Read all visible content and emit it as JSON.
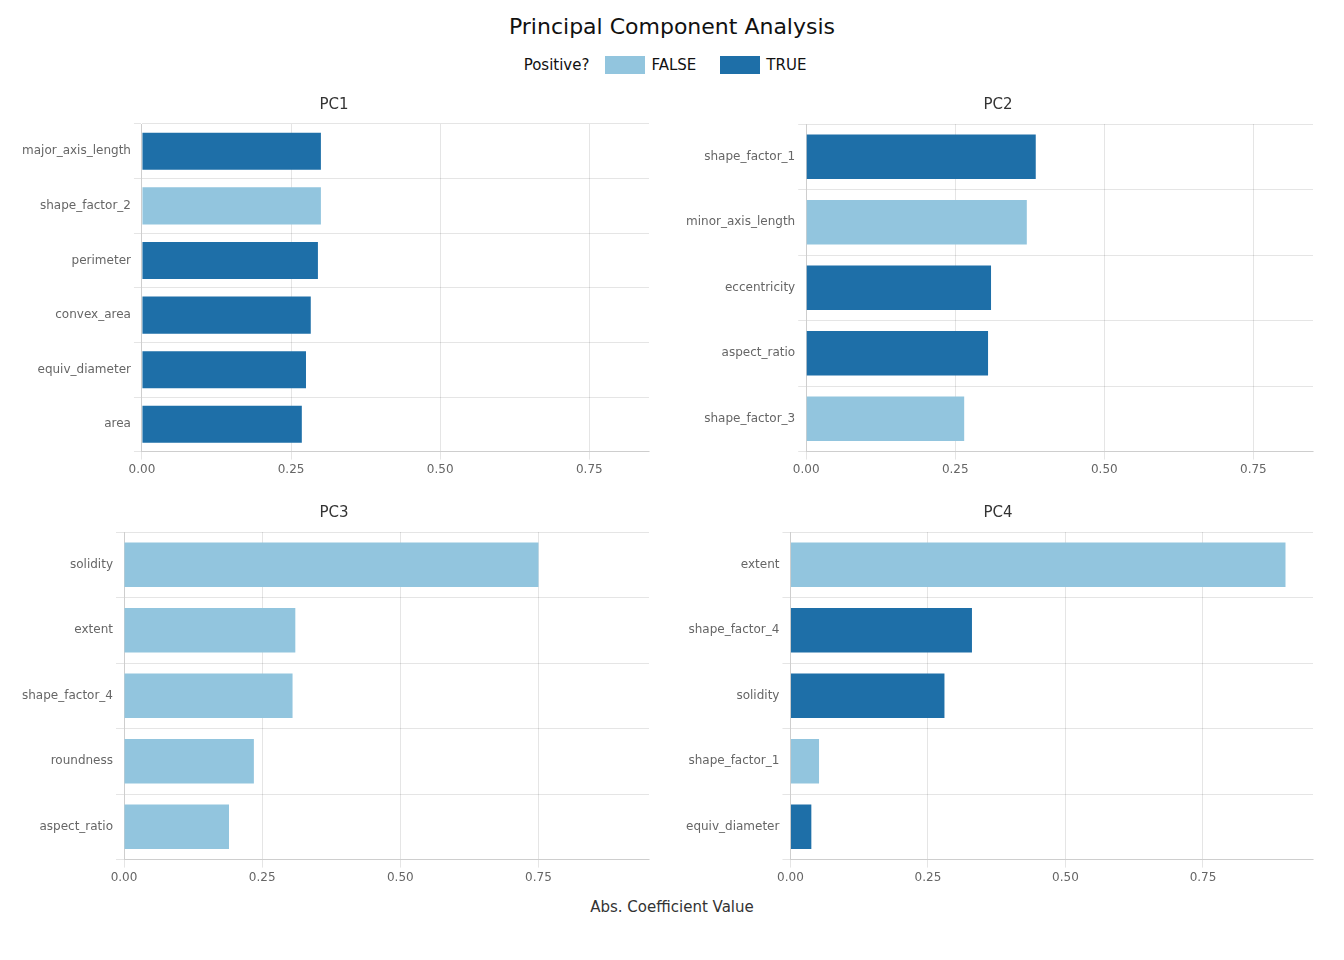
{
  "title": "Principal Component Analysis",
  "xlabel": "Abs. Coefficient Value",
  "legend_title": "Positive?",
  "chart_data": [
    {
      "type": "bar",
      "orientation": "horizontal",
      "stacked": true,
      "grid": true,
      "title": "PC1",
      "categories": [
        "major_axis_length",
        "shape_factor_2",
        "perimeter",
        "convex_area",
        "equiv_diameter",
        "area"
      ],
      "series": [
        {
          "name": "FALSE",
          "color": "#92C5DE",
          "values": [
            null,
            0.3,
            null,
            null,
            null,
            null
          ]
        },
        {
          "name": "TRUE",
          "color": "#1E6FA8",
          "values": [
            0.3,
            null,
            0.295,
            0.283,
            0.275,
            0.268
          ]
        }
      ],
      "xlim": [
        0,
        0.85
      ],
      "xticks": [
        {
          "value": 0,
          "label": "0.00"
        },
        0.25,
        {
          "value": 0.5,
          "label": "0.50"
        },
        0.75
      ]
    },
    {
      "type": "bar",
      "orientation": "horizontal",
      "stacked": true,
      "grid": true,
      "title": "PC2",
      "categories": [
        "shape_factor_1",
        "minor_axis_length",
        "eccentricity",
        "aspect_ratio",
        "shape_factor_3"
      ],
      "series": [
        {
          "name": "FALSE",
          "color": "#92C5DE",
          "values": [
            null,
            0.37,
            null,
            null,
            0.265
          ]
        },
        {
          "name": "TRUE",
          "color": "#1E6FA8",
          "values": [
            0.385,
            null,
            0.31,
            0.305,
            null
          ]
        }
      ],
      "xlim": [
        0,
        0.85
      ],
      "xticks": [
        {
          "value": 0,
          "label": "0.00"
        },
        0.25,
        {
          "value": 0.5,
          "label": "0.50"
        },
        0.75
      ]
    },
    {
      "type": "bar",
      "orientation": "horizontal",
      "stacked": true,
      "grid": true,
      "title": "PC3",
      "categories": [
        "solidity",
        "extent",
        "shape_factor_4",
        "roundness",
        "aspect_ratio"
      ],
      "series": [
        {
          "name": "FALSE",
          "color": "#92C5DE",
          "values": [
            0.75,
            0.31,
            0.305,
            0.235,
            0.19
          ]
        },
        {
          "name": "TRUE",
          "color": "#1E6FA8",
          "values": [
            null,
            null,
            null,
            null,
            null
          ]
        }
      ],
      "xlim": [
        0,
        0.95
      ],
      "xticks": [
        {
          "value": 0,
          "label": "0.00"
        },
        0.25,
        {
          "value": 0.5,
          "label": "0.50"
        },
        0.75
      ]
    },
    {
      "type": "bar",
      "orientation": "horizontal",
      "stacked": true,
      "grid": true,
      "title": "PC4",
      "categories": [
        "extent",
        "shape_factor_4",
        "solidity",
        "shape_factor_1",
        "equiv_diameter"
      ],
      "series": [
        {
          "name": "FALSE",
          "color": "#92C5DE",
          "values": [
            0.9,
            null,
            null,
            0.052,
            null
          ]
        },
        {
          "name": "TRUE",
          "color": "#1E6FA8",
          "values": [
            null,
            0.33,
            0.28,
            null,
            0.038
          ]
        }
      ],
      "xlim": [
        0,
        0.95
      ],
      "xticks": [
        {
          "value": 0,
          "label": "0.00"
        },
        0.25,
        {
          "value": 0.5,
          "label": "0.50"
        },
        0.75
      ]
    }
  ]
}
